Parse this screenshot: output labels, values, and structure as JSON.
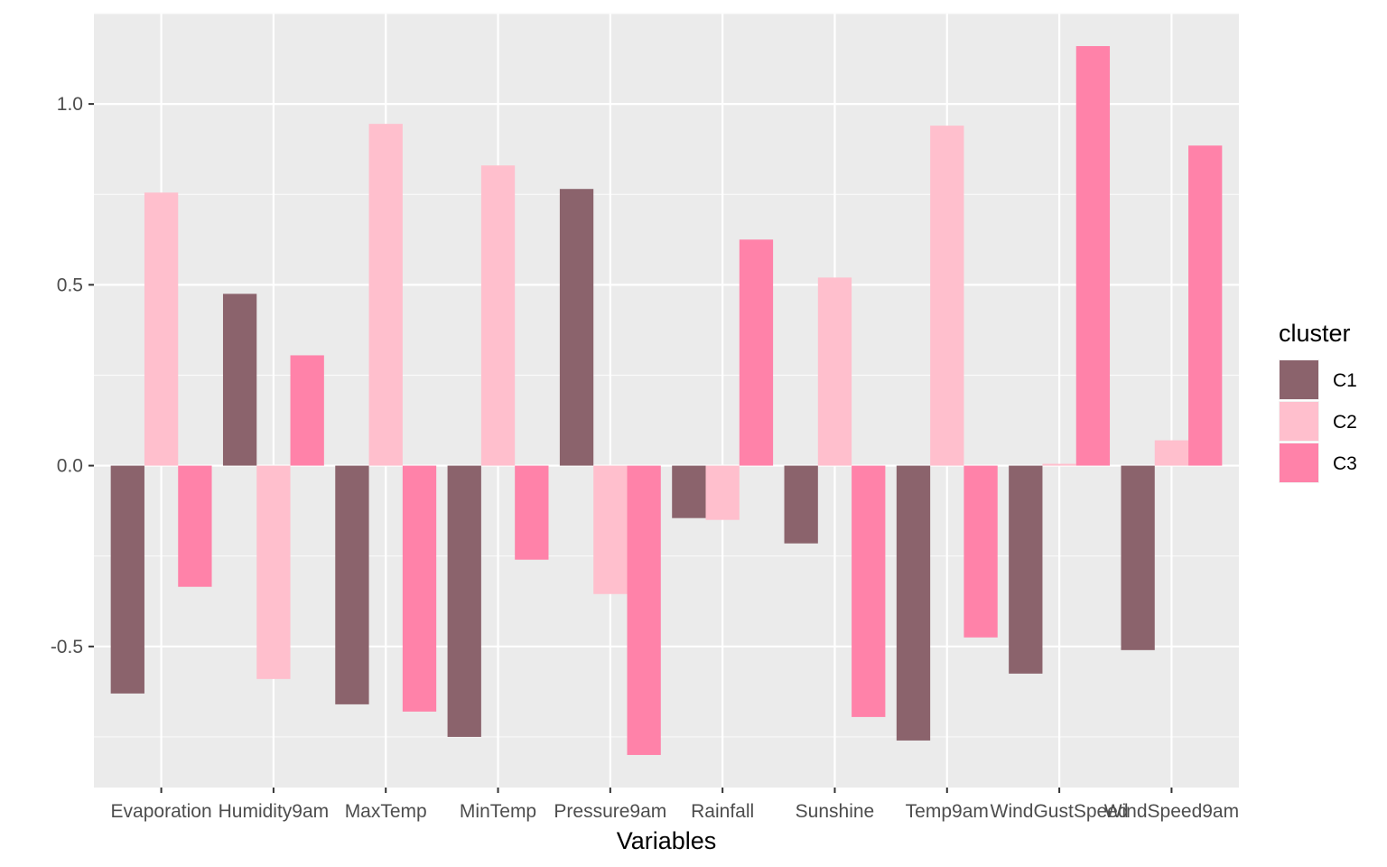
{
  "chart_data": {
    "type": "bar",
    "categories": [
      "Evaporation",
      "Humidity9am",
      "MaxTemp",
      "MinTemp",
      "Pressure9am",
      "Rainfall",
      "Sunshine",
      "Temp9am",
      "WindGustSpeed",
      "WindSpeed9am"
    ],
    "series": [
      {
        "name": "C1",
        "color": "#8b636c",
        "values": [
          -0.63,
          0.475,
          -0.66,
          -0.75,
          0.765,
          -0.145,
          -0.215,
          -0.76,
          -0.575,
          -0.51
        ]
      },
      {
        "name": "C2",
        "color": "#ffbfcd",
        "values": [
          0.755,
          -0.59,
          0.945,
          0.83,
          -0.355,
          -0.15,
          0.52,
          0.94,
          0.005,
          0.07
        ]
      },
      {
        "name": "C3",
        "color": "#ff82a9",
        "values": [
          -0.335,
          0.305,
          -0.68,
          -0.26,
          -0.8,
          0.625,
          -0.695,
          -0.475,
          1.16,
          0.885
        ]
      }
    ],
    "title": "",
    "xlabel": "Variables",
    "ylabel": "",
    "ylim": [
      -0.89,
      1.25
    ],
    "yticks": [
      -0.5,
      0.0,
      0.5,
      1.0
    ],
    "ytick_labels": [
      "-0.5",
      "0.0",
      "0.5",
      "1.0"
    ],
    "grid": true,
    "legend": {
      "title": "cluster",
      "position": "right"
    }
  }
}
